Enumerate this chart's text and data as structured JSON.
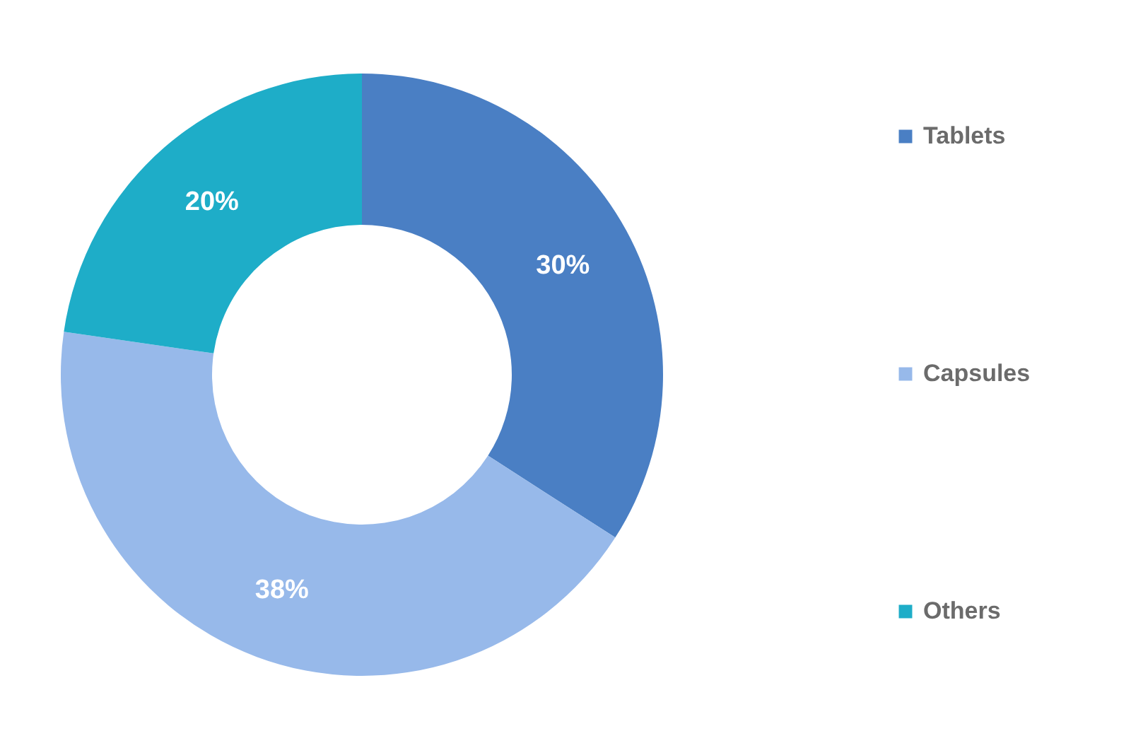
{
  "chart_data": {
    "type": "donut",
    "categories": [
      "Tablets",
      "Capsules",
      "Others"
    ],
    "values": [
      30,
      38,
      20
    ],
    "colors": [
      "#4a7fc4",
      "#97b9ea",
      "#1eadc8"
    ],
    "value_labels": [
      "30%",
      "38%",
      "20%"
    ],
    "legend": "right"
  }
}
